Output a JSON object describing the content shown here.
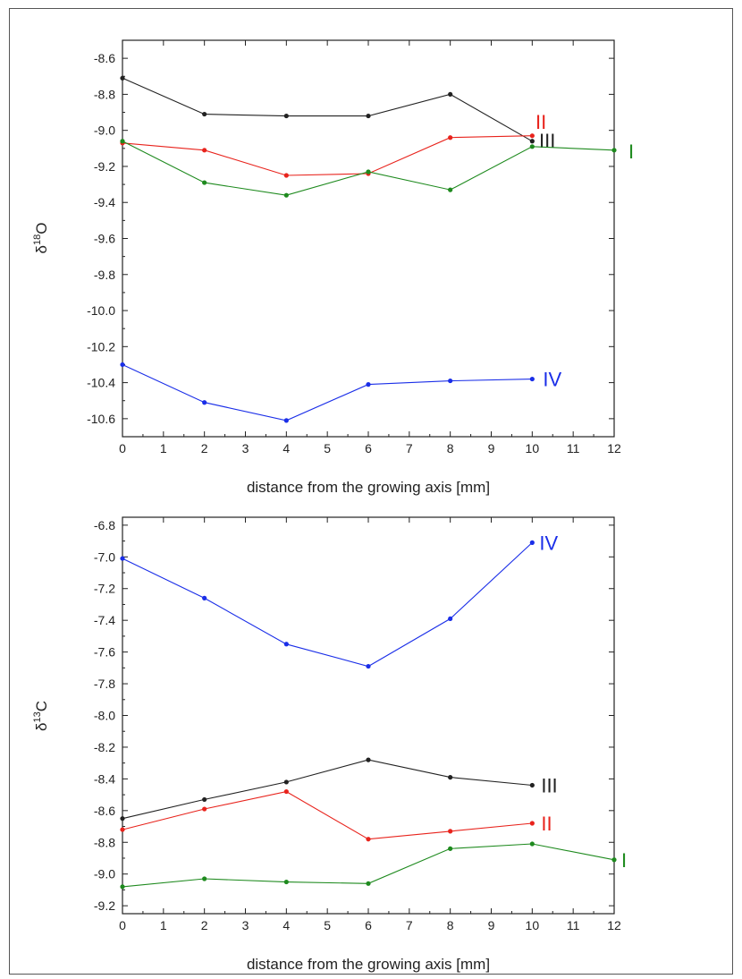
{
  "chart_data": [
    {
      "type": "line",
      "ylabel": "δ18O",
      "xlabel": "distance from the growing axis [mm]",
      "xlim": [
        0,
        12
      ],
      "ylim": [
        -10.7,
        -8.5
      ],
      "xticks": [
        0,
        1,
        2,
        3,
        4,
        5,
        6,
        7,
        8,
        9,
        10,
        11,
        12
      ],
      "yticks": [
        -10.6,
        -10.4,
        -10.2,
        -10.0,
        -9.8,
        -9.6,
        -9.4,
        -9.2,
        -9.0,
        -8.8,
        -8.6
      ],
      "series": [
        {
          "name": "III",
          "color": "#222222",
          "x": [
            0,
            2,
            4,
            6,
            8,
            10
          ],
          "y": [
            -8.71,
            -8.91,
            -8.92,
            -8.92,
            -8.8,
            -9.06
          ]
        },
        {
          "name": "II",
          "color": "#e8231c",
          "x": [
            0,
            2,
            4,
            6,
            8,
            10
          ],
          "y": [
            -9.07,
            -9.11,
            -9.25,
            -9.24,
            -9.04,
            -9.03
          ]
        },
        {
          "name": "I",
          "color": "#1e8a1e",
          "x": [
            0,
            2,
            4,
            6,
            8,
            10,
            12
          ],
          "y": [
            -9.06,
            -9.29,
            -9.36,
            -9.23,
            -9.33,
            -9.09,
            -9.11
          ]
        },
        {
          "name": "IV",
          "color": "#1a2ee8",
          "x": [
            0,
            2,
            4,
            6,
            8,
            10
          ],
          "y": [
            -10.3,
            -10.51,
            -10.61,
            -10.41,
            -10.39,
            -10.38
          ]
        }
      ]
    },
    {
      "type": "line",
      "ylabel": "δ13C",
      "xlabel": "distance from the growing axis [mm]",
      "xlim": [
        0,
        12
      ],
      "ylim": [
        -9.25,
        -6.75
      ],
      "xticks": [
        0,
        1,
        2,
        3,
        4,
        5,
        6,
        7,
        8,
        9,
        10,
        11,
        12
      ],
      "yticks": [
        -9.2,
        -9.0,
        -8.8,
        -8.6,
        -8.4,
        -8.2,
        -8.0,
        -7.8,
        -7.6,
        -7.4,
        -7.2,
        -7.0,
        -6.8
      ],
      "series": [
        {
          "name": "IV",
          "color": "#1a2ee8",
          "x": [
            0,
            2,
            4,
            6,
            8,
            10
          ],
          "y": [
            -7.01,
            -7.26,
            -7.55,
            -7.69,
            -7.39,
            -6.91
          ]
        },
        {
          "name": "III",
          "color": "#222222",
          "x": [
            0,
            2,
            4,
            6,
            8,
            10
          ],
          "y": [
            -8.65,
            -8.53,
            -8.42,
            -8.28,
            -8.39,
            -8.44
          ]
        },
        {
          "name": "II",
          "color": "#e8231c",
          "x": [
            0,
            2,
            4,
            6,
            8,
            10
          ],
          "y": [
            -8.72,
            -8.59,
            -8.48,
            -8.78,
            -8.73,
            -8.68
          ]
        },
        {
          "name": "I",
          "color": "#1e8a1e",
          "x": [
            0,
            2,
            4,
            6,
            8,
            10,
            12
          ],
          "y": [
            -9.08,
            -9.03,
            -9.05,
            -9.06,
            -8.84,
            -8.81,
            -8.91
          ]
        }
      ]
    }
  ]
}
